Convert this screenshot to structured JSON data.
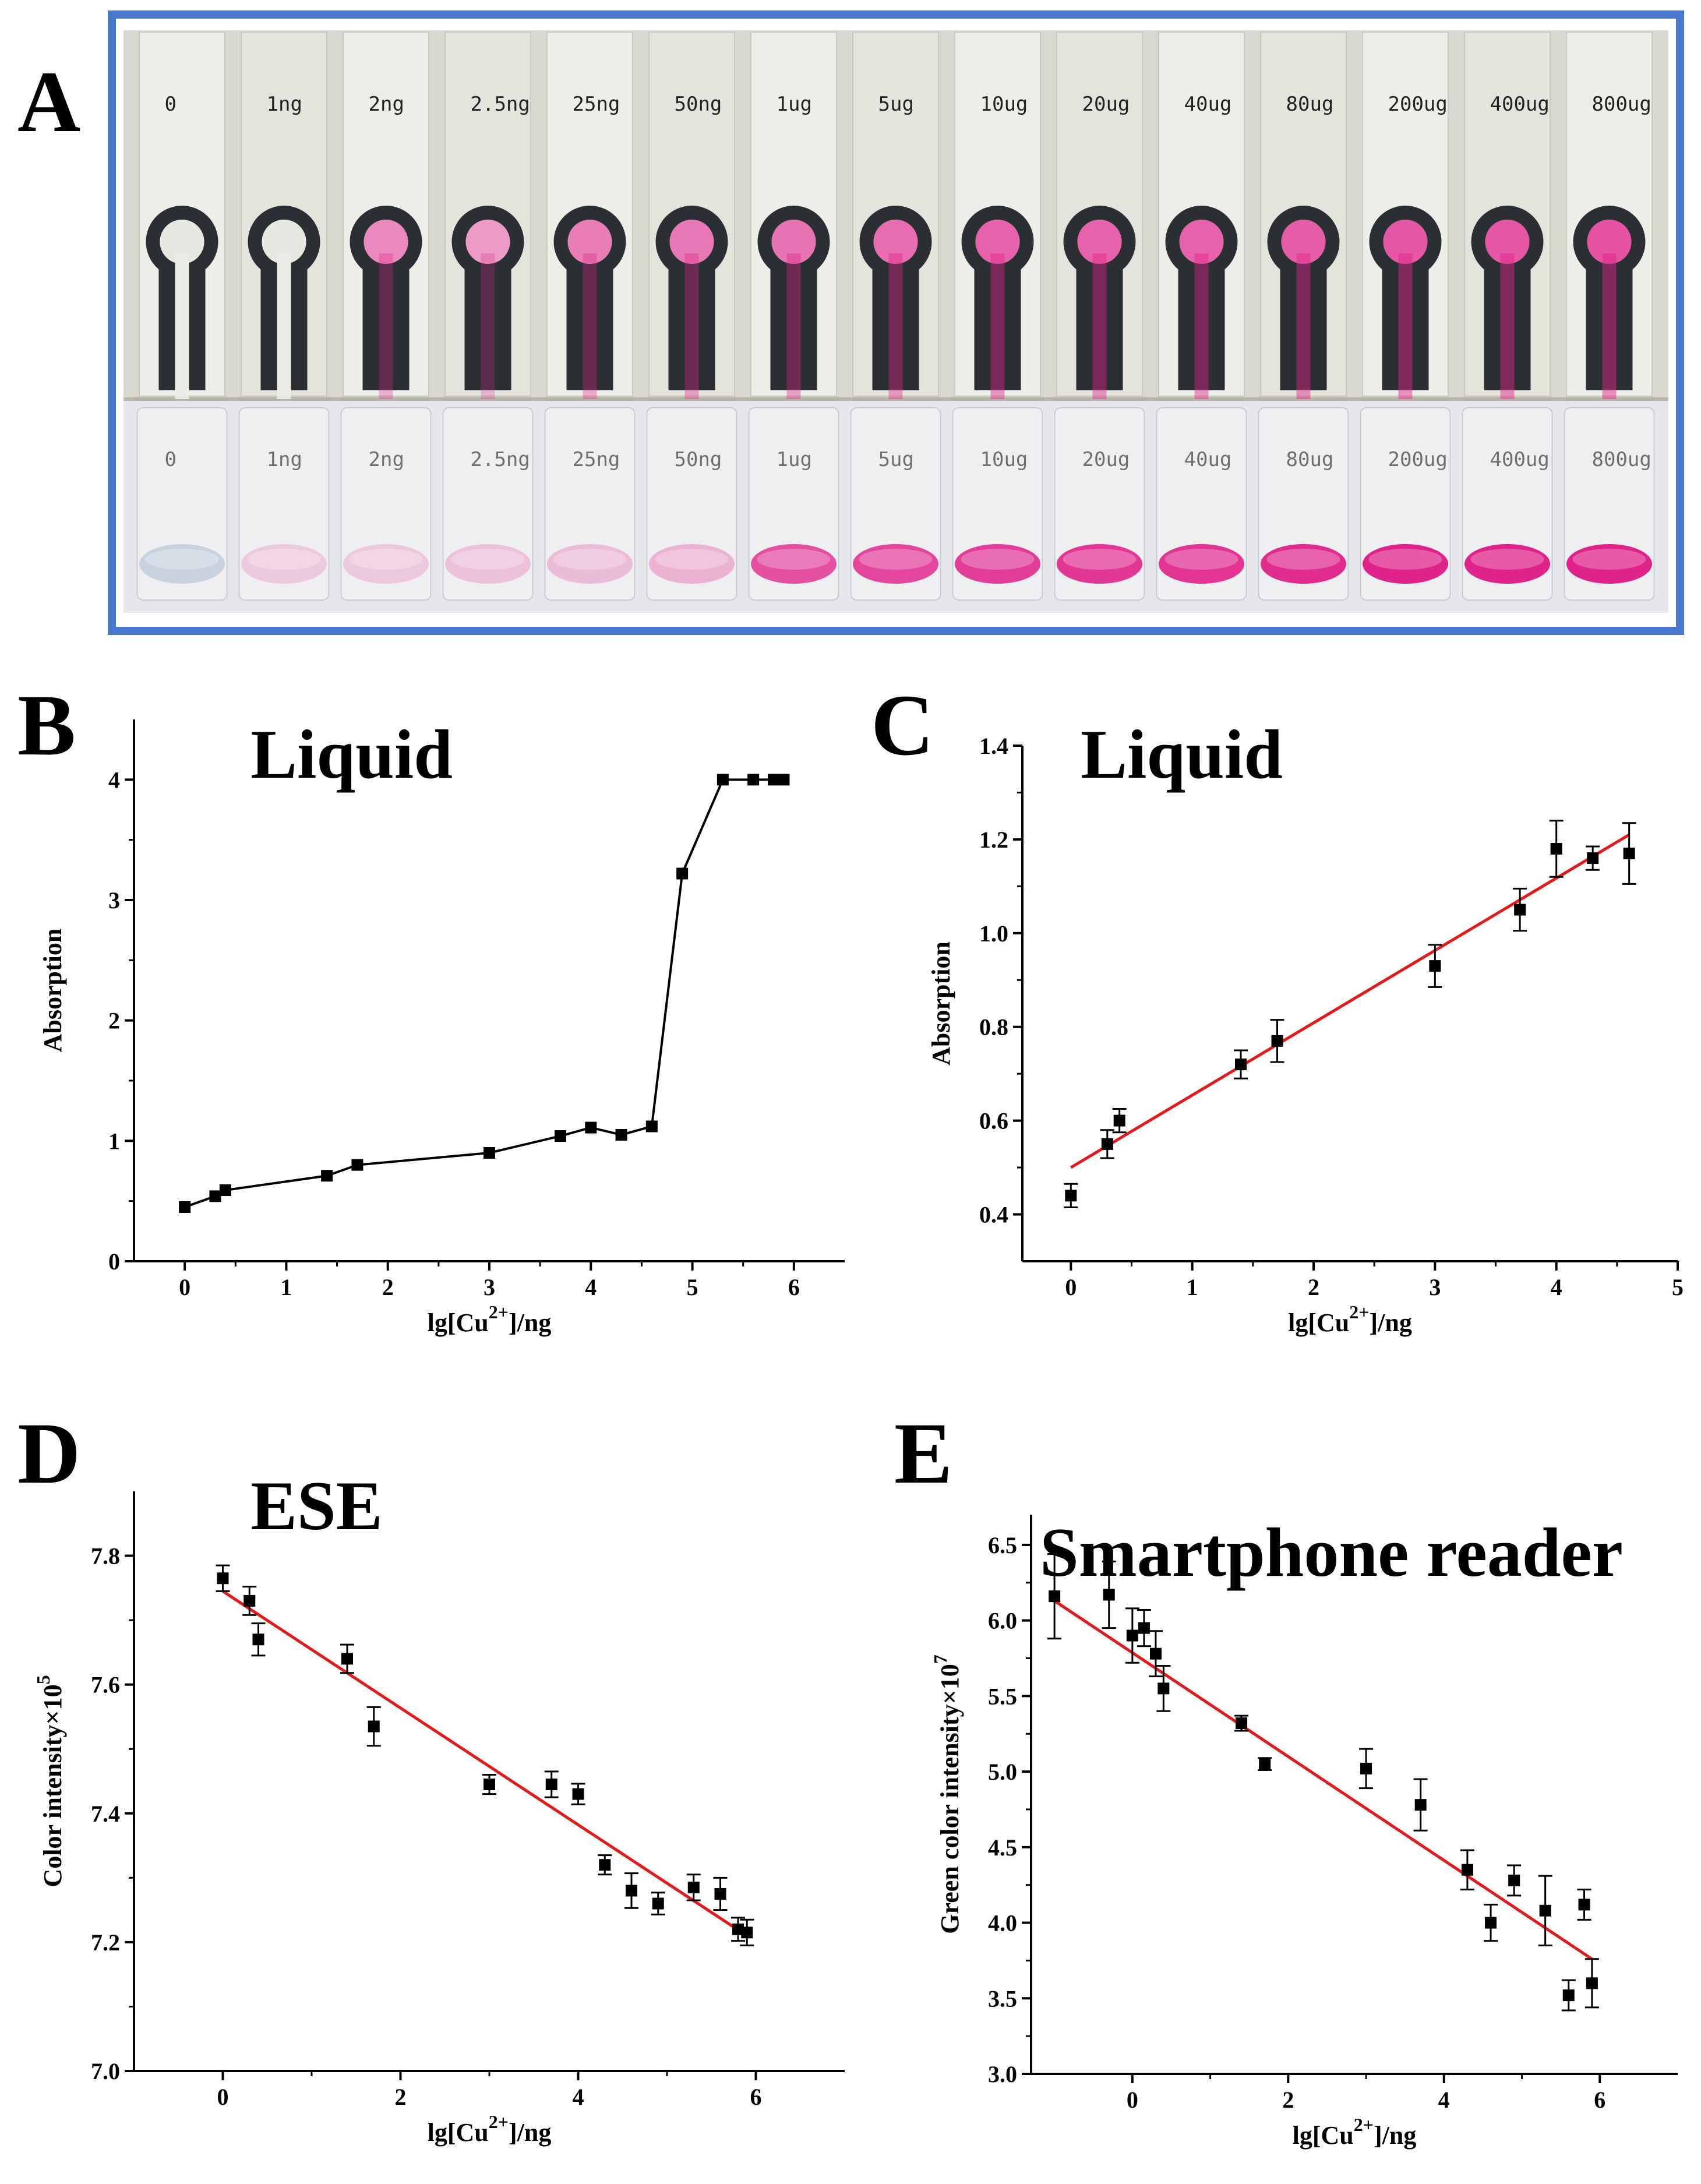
{
  "panel_letters": [
    "A",
    "B",
    "C",
    "D",
    "E"
  ],
  "photo": {
    "strip_labels": [
      "0",
      "1ng",
      "2ng",
      "2.5ng",
      "25ng",
      "50ng",
      "1ug",
      "5ug",
      "10ug",
      "20ug",
      "40ug",
      "80ug",
      "200ug",
      "400ug",
      "800ug"
    ],
    "vial_labels": [
      "0",
      "1ng",
      "2ng",
      "2.5ng",
      "25ng",
      "50ng",
      "1ug",
      "5ug",
      "10ug",
      "20ug",
      "40ug",
      "80ug",
      "200ug",
      "400ug",
      "800ug"
    ],
    "strip_pink": [
      0,
      0,
      0.45,
      0.3,
      0.55,
      0.6,
      0.65,
      0.7,
      0.8,
      0.8,
      0.8,
      0.85,
      0.9,
      0.9,
      0.95
    ],
    "vial_pink": [
      0,
      0.03,
      0.05,
      0.08,
      0.12,
      0.18,
      0.75,
      0.8,
      0.85,
      0.88,
      0.9,
      0.95,
      1,
      1,
      1
    ],
    "colors": {
      "frame": "#4a78d1",
      "pink": "#e0238a",
      "ink": "#2b2f33"
    }
  },
  "chart_data": [
    {
      "panel": "B",
      "type": "line",
      "title": "Liquid",
      "xlabel": "lg[Cu2+]/ng",
      "ylabel": "Absorption",
      "xlim": [
        -0.5,
        6.5
      ],
      "ylim": [
        0,
        4.5
      ],
      "xticks": [
        0,
        1,
        2,
        3,
        4,
        5,
        6
      ],
      "yticks": [
        0,
        1,
        2,
        3,
        4
      ],
      "x": [
        0,
        0.3,
        0.4,
        1.4,
        1.7,
        3.0,
        3.7,
        4.0,
        4.3,
        4.6,
        4.9,
        5.3,
        5.6,
        5.8,
        5.9
      ],
      "y": [
        0.45,
        0.54,
        0.59,
        0.71,
        0.8,
        0.9,
        1.04,
        1.11,
        1.05,
        1.12,
        3.22,
        4.0,
        4.0,
        4.0,
        4.0
      ],
      "color": "#000000"
    },
    {
      "panel": "C",
      "type": "scatter",
      "title": "Liquid",
      "xlabel": "lg[Cu2+]/ng",
      "ylabel": "Absorption",
      "xlim": [
        -0.4,
        5.0
      ],
      "ylim": [
        0.3,
        1.4
      ],
      "xticks": [
        0,
        1,
        2,
        3,
        4,
        5
      ],
      "yticks": [
        0.4,
        0.6,
        0.8,
        1.0,
        1.2,
        1.4
      ],
      "ytick_decimals": 1,
      "x": [
        0,
        0.3,
        0.4,
        1.4,
        1.7,
        3.0,
        3.7,
        4.0,
        4.3,
        4.6
      ],
      "y": [
        0.44,
        0.55,
        0.6,
        0.72,
        0.77,
        0.93,
        1.05,
        1.18,
        1.16,
        1.17
      ],
      "err": [
        0.025,
        0.03,
        0.025,
        0.03,
        0.045,
        0.045,
        0.045,
        0.06,
        0.025,
        0.065
      ],
      "fit": {
        "x": [
          0,
          4.6
        ],
        "y": [
          0.5,
          1.21
        ]
      },
      "color": "#000000",
      "fit_color": "#e31a1c"
    },
    {
      "panel": "D",
      "type": "scatter",
      "title": "ESE",
      "xlabel": "lg[Cu2+]/ng",
      "ylabel": "Color intensity×105",
      "xlim": [
        -1,
        7
      ],
      "ylim": [
        7.0,
        7.9
      ],
      "xticks": [
        0,
        2,
        4,
        6
      ],
      "yticks": [
        7.0,
        7.2,
        7.4,
        7.6,
        7.8
      ],
      "ytick_decimals": 1,
      "x": [
        0,
        0.3,
        0.4,
        1.4,
        1.7,
        3.0,
        3.7,
        4.0,
        4.3,
        4.6,
        4.9,
        5.3,
        5.6,
        5.8,
        5.9
      ],
      "y": [
        7.765,
        7.73,
        7.67,
        7.64,
        7.535,
        7.445,
        7.445,
        7.43,
        7.32,
        7.28,
        7.26,
        7.285,
        7.275,
        7.22,
        7.215
      ],
      "err": [
        0.02,
        0.022,
        0.025,
        0.022,
        0.03,
        0.015,
        0.02,
        0.016,
        0.015,
        0.027,
        0.017,
        0.02,
        0.025,
        0.018,
        0.02
      ],
      "fit": {
        "x": [
          0,
          5.9
        ],
        "y": [
          7.745,
          7.21
        ]
      },
      "color": "#000000",
      "fit_color": "#e31a1c"
    },
    {
      "panel": "E",
      "type": "scatter",
      "title": "Smartphone reader",
      "xlabel": "lg[Cu2+]/ng",
      "ylabel": "Green color intensity×107",
      "xlim": [
        -1.3,
        7
      ],
      "ylim": [
        3.0,
        6.7
      ],
      "xticks": [
        0,
        2,
        4,
        6
      ],
      "yticks": [
        3.0,
        3.5,
        4.0,
        4.5,
        5.0,
        5.5,
        6.0,
        6.5
      ],
      "ytick_decimals": 1,
      "x": [
        -1.0,
        -0.3,
        0,
        0.15,
        0.3,
        0.4,
        1.4,
        1.7,
        3.0,
        3.7,
        4.3,
        4.6,
        4.9,
        5.3,
        5.6,
        5.8,
        5.9
      ],
      "y": [
        6.16,
        6.17,
        5.9,
        5.95,
        5.78,
        5.55,
        5.32,
        5.05,
        5.02,
        4.78,
        4.35,
        4.0,
        4.28,
        4.08,
        3.52,
        4.12,
        3.6
      ],
      "err": [
        0.28,
        0.22,
        0.18,
        0.12,
        0.15,
        0.15,
        0.05,
        0.04,
        0.13,
        0.17,
        0.13,
        0.12,
        0.1,
        0.23,
        0.1,
        0.1,
        0.16
      ],
      "fit": {
        "x": [
          -1.0,
          5.9
        ],
        "y": [
          6.13,
          3.76
        ]
      },
      "color": "#000000",
      "fit_color": "#e31a1c"
    }
  ]
}
